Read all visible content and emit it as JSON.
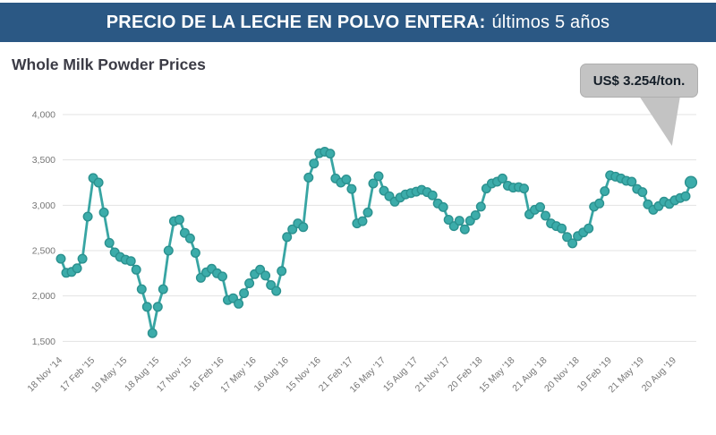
{
  "header": {
    "title_bold": "PRECIO DE LA LECHE EN POLVO ENTERA:",
    "title_regular": "últimos 5 años",
    "bg_color": "#2b5884",
    "text_color": "#ffffff"
  },
  "chart_title": "Whole Milk Powder Prices",
  "callout": {
    "text": "US$ 3.254/ton."
  },
  "chart_data": {
    "type": "line",
    "title": "Whole Milk Powder Prices",
    "xlabel": "",
    "ylabel": "",
    "ylim": [
      1500,
      4000
    ],
    "grid": true,
    "legend_position": "none",
    "line_color": "#38a5a3",
    "marker_fill": "#3cacaa",
    "marker_stroke": "#2b918f",
    "grid_color": "#e3e3e3",
    "axis_text_color": "#767676",
    "y_tick_values": [
      4000,
      3500,
      3000,
      2500,
      2000,
      1500
    ],
    "y_tick_labels": [
      "4,000",
      "3,500",
      "3,000",
      "2,500",
      "2,000",
      "1,500"
    ],
    "x_tick_labels": [
      "18 Nov '14",
      "17 Feb '15",
      "19 May '15",
      "18 Aug '15",
      "17 Nov '15",
      "16 Feb '16",
      "17 May '16",
      "16 Aug '16",
      "15 Nov '16",
      "21 Feb '17",
      "16 May '17",
      "15 Aug '17",
      "21 Nov '17",
      "20 Feb '18",
      "15 May '18",
      "21 Aug '18",
      "20 Nov '18",
      "19 Feb '19",
      "21 May '19",
      "20 Aug '19"
    ],
    "points_per_tick": 6,
    "final_value": 3254,
    "final_value_label": "US$ 3.254/ton.",
    "values": [
      2410,
      2255,
      2265,
      2305,
      2410,
      2875,
      3300,
      3250,
      2920,
      2585,
      2480,
      2430,
      2400,
      2385,
      2290,
      2075,
      1880,
      1590,
      1880,
      2075,
      2500,
      2825,
      2840,
      2695,
      2635,
      2475,
      2200,
      2260,
      2300,
      2250,
      2215,
      1955,
      1975,
      1915,
      2030,
      2140,
      2240,
      2290,
      2225,
      2120,
      2055,
      2275,
      2650,
      2735,
      2800,
      2760,
      3305,
      3460,
      3575,
      3590,
      3570,
      3295,
      3250,
      3285,
      3180,
      2800,
      2825,
      2920,
      3240,
      3320,
      3160,
      3100,
      3040,
      3085,
      3120,
      3135,
      3150,
      3170,
      3145,
      3110,
      3020,
      2980,
      2840,
      2770,
      2830,
      2735,
      2830,
      2890,
      2985,
      3185,
      3240,
      3260,
      3295,
      3215,
      3195,
      3200,
      3185,
      2900,
      2950,
      2980,
      2885,
      2800,
      2770,
      2745,
      2650,
      2580,
      2660,
      2700,
      2745,
      2985,
      3020,
      3155,
      3330,
      3315,
      3295,
      3270,
      3260,
      3180,
      3145,
      3010,
      2950,
      2990,
      3040,
      3015,
      3055,
      3080,
      3100,
      3254
    ]
  }
}
